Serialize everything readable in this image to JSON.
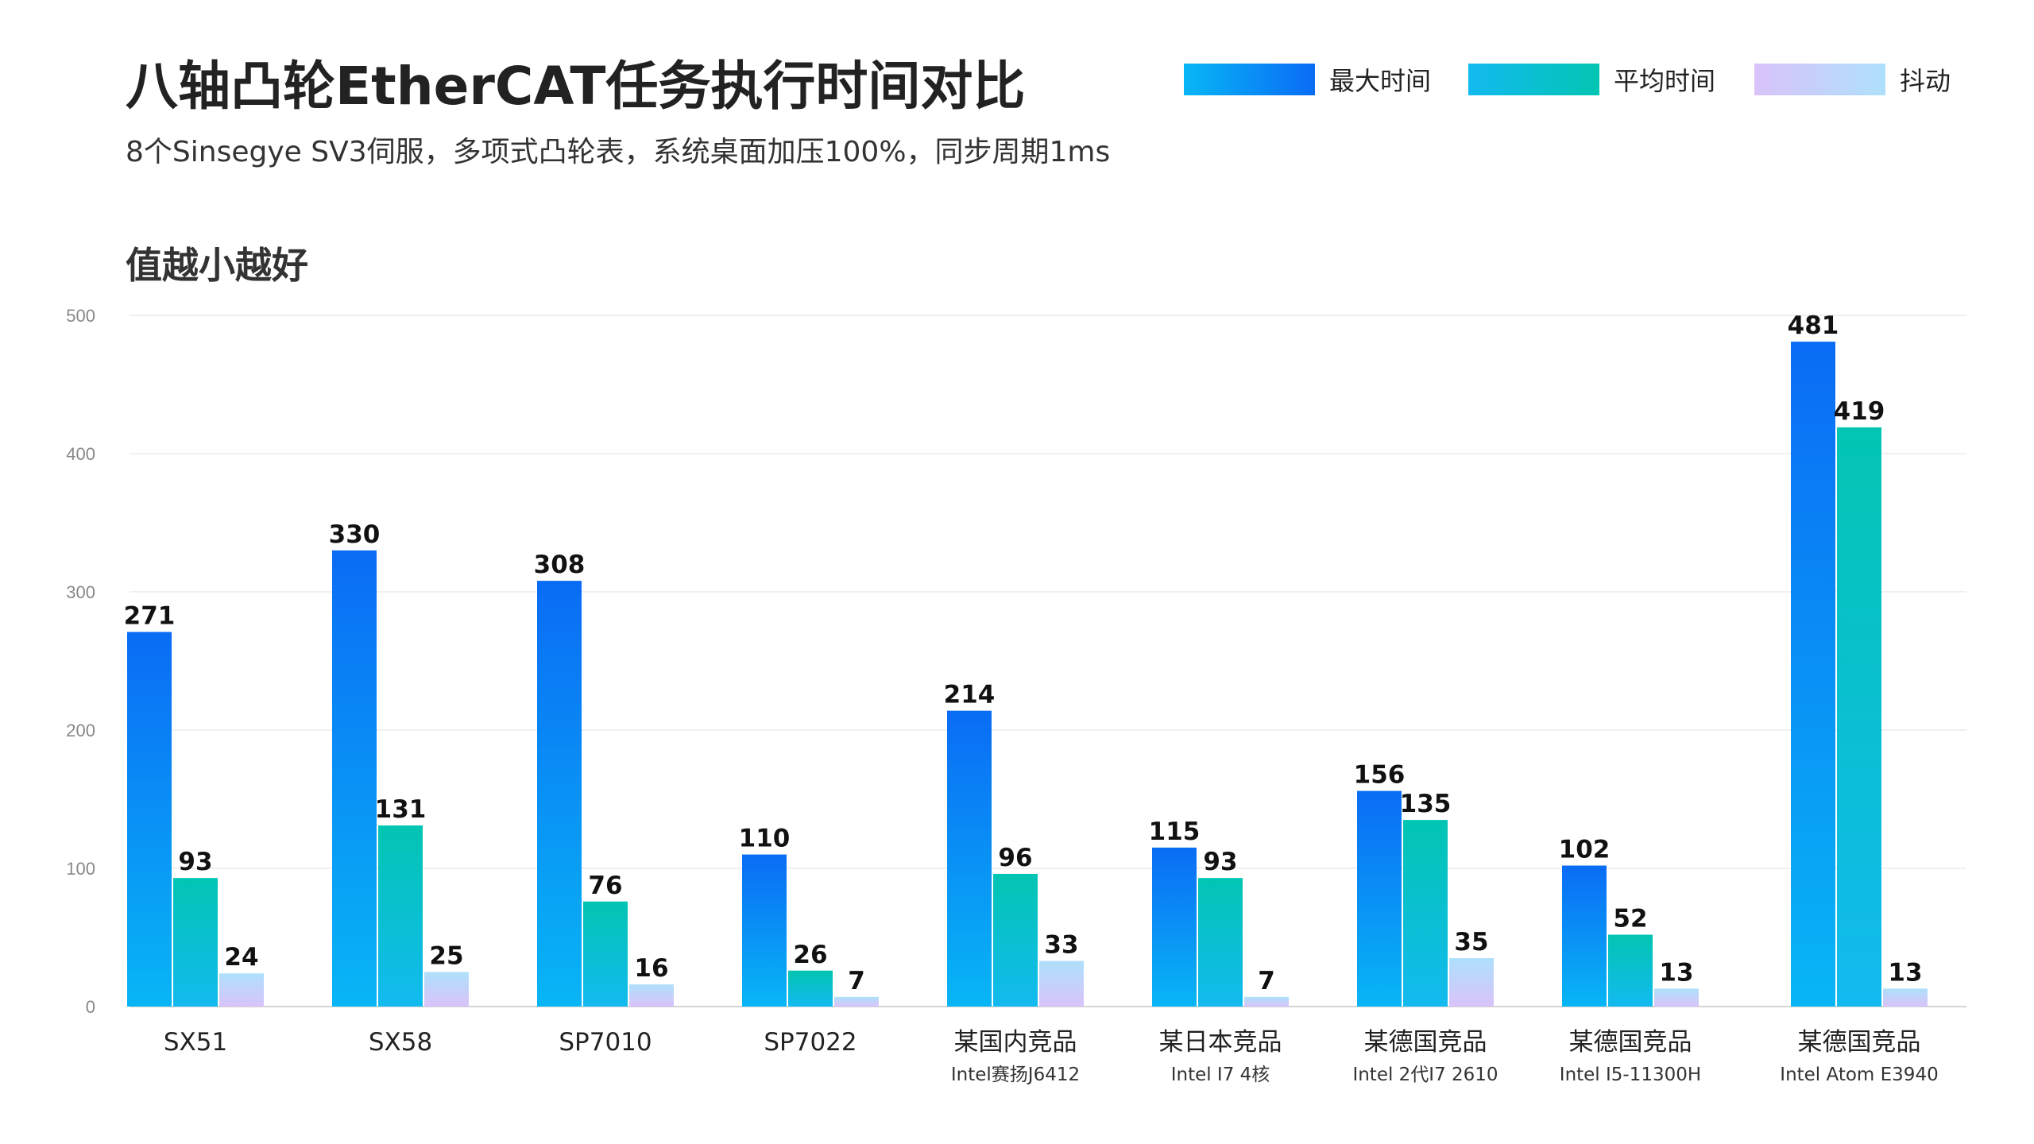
{
  "header": {
    "title": "八轴凸轮EtherCAT任务执行时间对比",
    "subtitle": "8个Sinsegye SV3伺服，多项式凸轮表，系统桌面加压100%，同步周期1ms",
    "hint": "值越小越好"
  },
  "legend": [
    {
      "label": "最大时间",
      "from": "#08b6f5",
      "to": "#0a6cf5"
    },
    {
      "label": "平均时间",
      "from": "#12baf0",
      "to": "#02c5b2"
    },
    {
      "label": "抖动",
      "from": "#d9c3fa",
      "to": "#aee0fb"
    }
  ],
  "chart_data": {
    "type": "bar",
    "title": "八轴凸轮EtherCAT任务执行时间对比",
    "xlabel": "",
    "ylabel": "",
    "ylim": [
      0,
      500
    ],
    "yticks": [
      0,
      100,
      200,
      300,
      400,
      500
    ],
    "grid": true,
    "legend_position": "top-right",
    "categories": [
      {
        "name": "SX51",
        "sub": ""
      },
      {
        "name": "SX58",
        "sub": ""
      },
      {
        "name": "SP7010",
        "sub": ""
      },
      {
        "name": "SP7022",
        "sub": ""
      },
      {
        "name": "某国内竞品",
        "sub": "Intel赛扬J6412"
      },
      {
        "name": "某日本竞品",
        "sub": "Intel I7 4核"
      },
      {
        "name": "某德国竞品",
        "sub": "Intel 2代I7 2610"
      },
      {
        "name": "某德国竞品",
        "sub": "Intel I5-11300H"
      },
      {
        "name": "某德国竞品",
        "sub": "Intel Atom E3940"
      }
    ],
    "series": [
      {
        "name": "最大时间",
        "values": [
          271,
          330,
          308,
          110,
          214,
          115,
          156,
          102,
          481
        ]
      },
      {
        "name": "平均时间",
        "values": [
          93,
          131,
          76,
          26,
          96,
          93,
          135,
          52,
          419
        ]
      },
      {
        "name": "抖动",
        "values": [
          24,
          25,
          16,
          7,
          33,
          7,
          35,
          13,
          13
        ]
      }
    ]
  }
}
